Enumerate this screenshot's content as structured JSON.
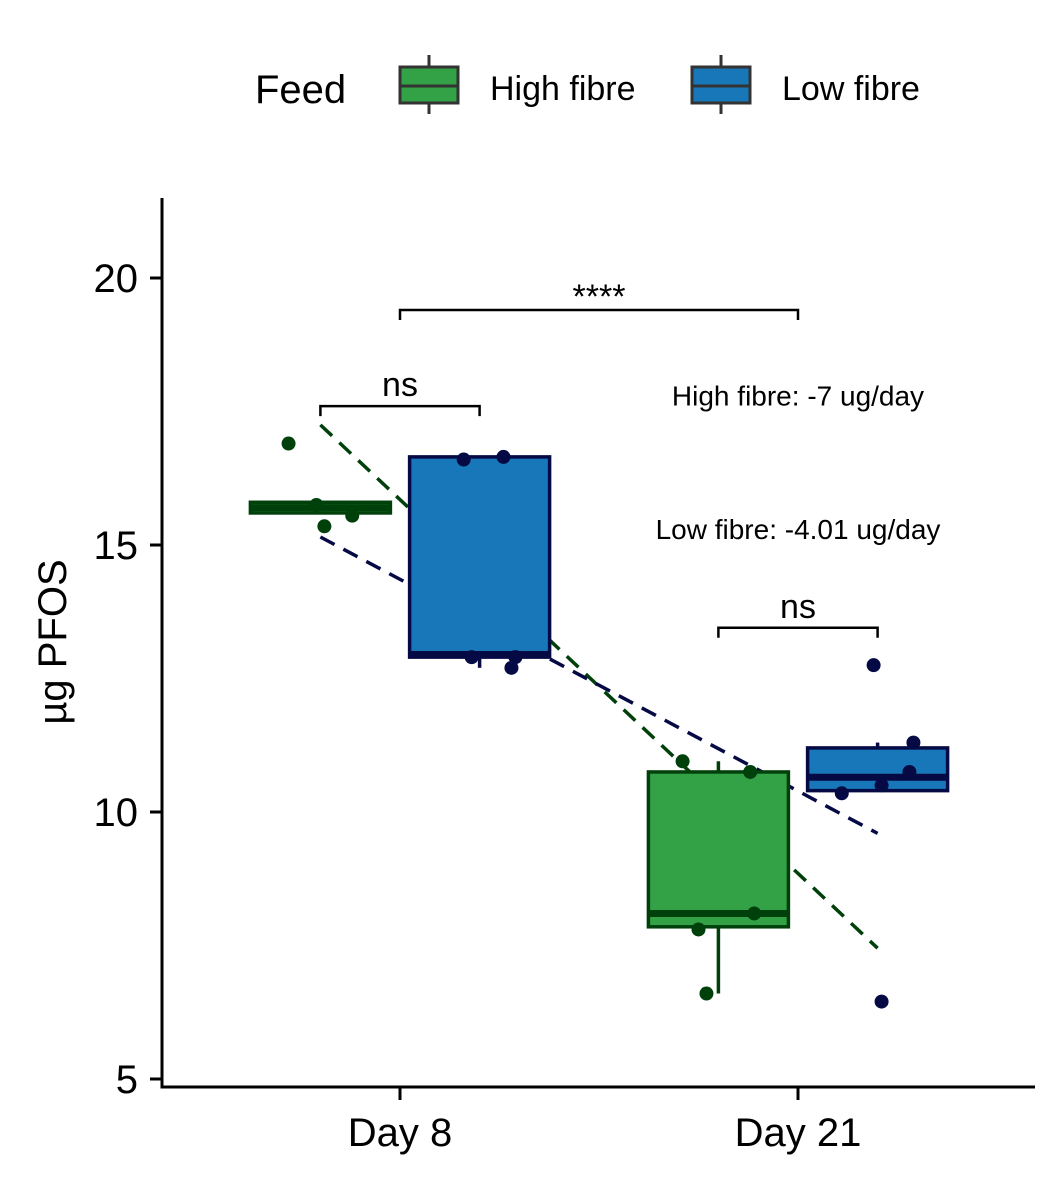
{
  "chart_data": {
    "type": "box",
    "ylabel": "µg PFOS",
    "xlabel": "",
    "ylim": [
      4.8,
      21.5
    ],
    "yticks": [
      5,
      10,
      15,
      20
    ],
    "categories": [
      "Day 8",
      "Day 21"
    ],
    "legend": {
      "title": "Feed",
      "position": "top",
      "entries": [
        {
          "name": "High fibre",
          "fill": "#33a146",
          "stroke": "#00400a"
        },
        {
          "name": "Low fibre",
          "fill": "#1877b8",
          "stroke": "#050a45"
        }
      ]
    },
    "series": [
      {
        "name": "High fibre",
        "fill": "#33a146",
        "stroke": "#00400a",
        "boxes": [
          {
            "category": "Day 8",
            "q1": 15.6,
            "median": 15.7,
            "q3": 15.8,
            "whisker_low": 15.6,
            "whisker_high": 15.8
          },
          {
            "category": "Day 21",
            "q1": 7.85,
            "median": 8.1,
            "q3": 10.75,
            "whisker_low": 6.6,
            "whisker_high": 10.95
          }
        ],
        "points": [
          {
            "category": "Day 8",
            "y": 16.9,
            "jitter": -0.28
          },
          {
            "category": "Day 8",
            "y": 15.75,
            "jitter": -0.21
          },
          {
            "category": "Day 8",
            "y": 15.35,
            "jitter": -0.19
          },
          {
            "category": "Day 8",
            "y": 15.55,
            "jitter": -0.12
          },
          {
            "category": "Day 21",
            "y": 10.95,
            "jitter": -0.29
          },
          {
            "category": "Day 21",
            "y": 10.75,
            "jitter": -0.12
          },
          {
            "category": "Day 21",
            "y": 8.1,
            "jitter": -0.11
          },
          {
            "category": "Day 21",
            "y": 7.8,
            "jitter": -0.25
          },
          {
            "category": "Day 21",
            "y": 6.6,
            "jitter": -0.23
          }
        ],
        "trend": {
          "x_from": -0.2,
          "x_to": 1.2,
          "y_from": 17.25,
          "y_to": 7.45
        }
      },
      {
        "name": "Low fibre",
        "fill": "#1877b8",
        "stroke": "#050a45",
        "boxes": [
          {
            "category": "Day 8",
            "q1": 12.9,
            "median": 12.95,
            "q3": 16.65,
            "whisker_low": 12.7,
            "whisker_high": 16.65
          },
          {
            "category": "Day 21",
            "q1": 10.4,
            "median": 10.65,
            "q3": 11.2,
            "whisker_low": 10.4,
            "whisker_high": 11.3
          }
        ],
        "points": [
          {
            "category": "Day 8",
            "y": 16.6,
            "jitter": 0.16
          },
          {
            "category": "Day 8",
            "y": 16.65,
            "jitter": 0.26
          },
          {
            "category": "Day 8",
            "y": 12.9,
            "jitter": 0.18
          },
          {
            "category": "Day 8",
            "y": 12.9,
            "jitter": 0.29
          },
          {
            "category": "Day 8",
            "y": 12.7,
            "jitter": 0.28
          },
          {
            "category": "Day 21",
            "y": 12.75,
            "jitter": 0.19
          },
          {
            "category": "Day 21",
            "y": 11.3,
            "jitter": 0.29
          },
          {
            "category": "Day 21",
            "y": 10.75,
            "jitter": 0.28
          },
          {
            "category": "Day 21",
            "y": 10.5,
            "jitter": 0.21
          },
          {
            "category": "Day 21",
            "y": 10.35,
            "jitter": 0.11
          },
          {
            "category": "Day 21",
            "y": 6.45,
            "jitter": 0.21
          }
        ],
        "trend": {
          "x_from": -0.2,
          "x_to": 1.2,
          "y_from": 15.15,
          "y_to": 9.6
        }
      }
    ],
    "significance": [
      {
        "label": "ns",
        "x_from": -0.2,
        "x_to": 0.2,
        "y": 17.6
      },
      {
        "label": "ns",
        "x_from": 0.8,
        "x_to": 1.2,
        "y": 13.45
      },
      {
        "label": "****",
        "x_from": 0,
        "x_to": 1,
        "y": 19.4
      }
    ],
    "annotations": [
      {
        "text": "High fibre: -7 ug/day",
        "x": 1,
        "y": 17.8
      },
      {
        "text": "Low fibre: -4.01 ug/day",
        "x": 1,
        "y": 15.3
      }
    ]
  }
}
